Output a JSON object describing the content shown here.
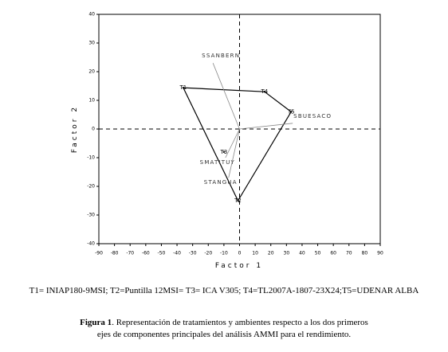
{
  "chart_data": {
    "type": "biplot",
    "x_label": "Factor 1",
    "y_label": "Factor 2",
    "xlim": [
      -90,
      90
    ],
    "xticks": [
      -90,
      -80,
      -70,
      -60,
      -50,
      -40,
      -30,
      -20,
      -10,
      0,
      10,
      20,
      30,
      40,
      50,
      60,
      70,
      80,
      90
    ],
    "ylim": [
      -40,
      40
    ],
    "yticks": [
      -40,
      -30,
      -20,
      -10,
      0,
      10,
      20,
      30,
      40
    ],
    "treatments": {
      "names": [
        "T1",
        "T2",
        "T3",
        "T4",
        "T5"
      ],
      "x": [
        -36,
        -1,
        -10,
        16,
        33
      ],
      "y": [
        14.4,
        -25,
        -8,
        13,
        6
      ]
    },
    "environments": {
      "names": [
        "SSANBERN",
        "SBUESACO",
        "SMATITUY",
        "STANGUA"
      ],
      "x": [
        -17,
        34,
        -9,
        -7
      ],
      "y": [
        23,
        2,
        -10,
        -17
      ]
    },
    "color": "#000000",
    "env_color": "#888888"
  },
  "legend_note": "T1= INIAP180-9MSI; T2=Puntilla 12MSI= T3= ICA V305; T4=TL2007A-1807-23X24;T5=UDENAR ALBA",
  "caption": {
    "label": "Figura 1",
    "lines": [
      ". Representación de tratamientos y ambientes respecto a los dos primeros",
      "ejes de componentes principales del análisis AMMI para el rendimiento."
    ]
  }
}
